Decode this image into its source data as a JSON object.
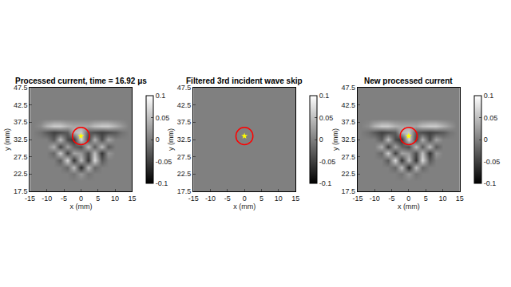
{
  "chart_data": [
    {
      "type": "heatmap",
      "title": "Processed current, time = 16.92 μs",
      "x_label": "x (mm)",
      "y_label": "y (mm)",
      "x": [
        -14,
        -12,
        -10,
        -8,
        -6,
        -4,
        -2,
        0,
        2,
        4,
        6,
        8,
        10,
        12,
        14
      ],
      "y": [
        18.5,
        20.5,
        22.5,
        24.5,
        26.5,
        28.5,
        30.5,
        32.5,
        34.5,
        36.5,
        38.5,
        40.5,
        42.5,
        44.5,
        46.5
      ],
      "z": [
        [
          0,
          0,
          0,
          0,
          0,
          0,
          0,
          0,
          0,
          0,
          0,
          0,
          0,
          0,
          0
        ],
        [
          0,
          0,
          0,
          0,
          0,
          0,
          0,
          0,
          0,
          0,
          0,
          0,
          0,
          0,
          0
        ],
        [
          0,
          0,
          0,
          0,
          0,
          0,
          -0.01,
          0.02,
          -0.01,
          0,
          0,
          0,
          0,
          0,
          0
        ],
        [
          0,
          0,
          0,
          0,
          0,
          -0.02,
          0.05,
          -0.07,
          0.05,
          -0.02,
          0,
          0,
          0,
          0,
          0
        ],
        [
          0,
          0,
          0,
          0,
          -0.03,
          0.07,
          -0.06,
          0.05,
          -0.06,
          0.07,
          -0.03,
          0,
          0,
          0,
          0
        ],
        [
          0,
          0,
          0,
          -0.02,
          0.06,
          -0.05,
          0.03,
          0.02,
          -0.04,
          0.05,
          -0.06,
          0.02,
          0,
          0,
          0
        ],
        [
          0,
          0,
          0,
          0.04,
          -0.05,
          0.03,
          -0.02,
          -0.04,
          0.05,
          -0.03,
          0.05,
          -0.03,
          0,
          0,
          0
        ],
        [
          0,
          0,
          0,
          -0.03,
          0.05,
          -0.04,
          -0.06,
          0.07,
          -0.05,
          0.04,
          -0.04,
          0.03,
          0,
          0,
          0
        ],
        [
          0,
          -0.01,
          -0.03,
          -0.05,
          -0.04,
          -0.03,
          0.04,
          0.06,
          -0.03,
          -0.04,
          -0.05,
          -0.04,
          -0.03,
          -0.01,
          0
        ],
        [
          0,
          0.01,
          0.04,
          0.06,
          0.06,
          0.04,
          0.03,
          0.03,
          0.03,
          0.05,
          0.06,
          0.06,
          0.04,
          0.02,
          0
        ],
        [
          0,
          0,
          0,
          0,
          0,
          0,
          0,
          0,
          0,
          0,
          0,
          0,
          0,
          0,
          0
        ],
        [
          0,
          0,
          0,
          0,
          0,
          0,
          0,
          0,
          0,
          0,
          0,
          0,
          0,
          0,
          0
        ],
        [
          0,
          0,
          0,
          0,
          0,
          0,
          0,
          0,
          0,
          0,
          0,
          0,
          0,
          0,
          0
        ],
        [
          0,
          0,
          0,
          0,
          0,
          0,
          0,
          0,
          0,
          0,
          0,
          0,
          0,
          0,
          0
        ],
        [
          0,
          0,
          0,
          0,
          0,
          0,
          0,
          0,
          0,
          0,
          0,
          0,
          0,
          0,
          0
        ]
      ],
      "xlim": [
        -15,
        15
      ],
      "xticks": [
        -15,
        -10,
        -5,
        0,
        5,
        10,
        15
      ],
      "ylim": [
        17.5,
        47.5
      ],
      "yticks": [
        17.5,
        22.5,
        27.5,
        32.5,
        37.5,
        42.5,
        47.5
      ],
      "zlim": [
        -0.1,
        0.1
      ],
      "zticks": [
        -0.1,
        -0.05,
        0,
        0.05,
        0.1
      ],
      "circle": {
        "x": 0,
        "y": 33.5,
        "r": 2.5,
        "color": "red"
      },
      "point": {
        "x": 0,
        "y": 33.5,
        "color": "yellow",
        "marker": "star"
      }
    },
    {
      "type": "heatmap",
      "title": "Filtered 3rd incident wave skip",
      "x_label": "x (mm)",
      "y_label": "y (mm)",
      "x": [
        -7.5,
        7.5
      ],
      "y": [
        25,
        40
      ],
      "z": [
        [
          0,
          0
        ],
        [
          0,
          0
        ]
      ],
      "xlim": [
        -15,
        15
      ],
      "xticks": [
        -15,
        -10,
        -5,
        0,
        5,
        10,
        15
      ],
      "ylim": [
        17.5,
        47.5
      ],
      "yticks": [
        17.5,
        22.5,
        27.5,
        32.5,
        37.5,
        42.5,
        47.5
      ],
      "zlim": [
        -0.1,
        0.1
      ],
      "zticks": [
        -0.1,
        -0.05,
        0,
        0.05,
        0.1
      ],
      "circle": {
        "x": 0,
        "y": 33.5,
        "r": 2.5,
        "color": "red"
      },
      "point": {
        "x": 0,
        "y": 33.5,
        "color": "yellow",
        "marker": "star"
      }
    },
    {
      "type": "heatmap",
      "title": "New processed current",
      "x_label": "x (mm)",
      "y_label": "y (mm)",
      "x": [
        -14,
        -12,
        -10,
        -8,
        -6,
        -4,
        -2,
        0,
        2,
        4,
        6,
        8,
        10,
        12,
        14
      ],
      "y": [
        18.5,
        20.5,
        22.5,
        24.5,
        26.5,
        28.5,
        30.5,
        32.5,
        34.5,
        36.5,
        38.5,
        40.5,
        42.5,
        44.5,
        46.5
      ],
      "z": [
        [
          0,
          0,
          0,
          0,
          0,
          0,
          0,
          0,
          0,
          0,
          0,
          0,
          0,
          0,
          0
        ],
        [
          0,
          0,
          0,
          0,
          0,
          0,
          0,
          0,
          0,
          0,
          0,
          0,
          0,
          0,
          0
        ],
        [
          0,
          0,
          0,
          0,
          0,
          0,
          -0.01,
          0.02,
          -0.01,
          0,
          0,
          0,
          0,
          0,
          0
        ],
        [
          0,
          0,
          0,
          0,
          0,
          -0.02,
          0.05,
          -0.07,
          0.05,
          -0.02,
          0,
          0,
          0,
          0,
          0
        ],
        [
          0,
          0,
          0,
          0,
          -0.03,
          0.07,
          -0.06,
          0.05,
          -0.06,
          0.07,
          -0.03,
          0,
          0,
          0,
          0
        ],
        [
          0,
          0,
          0,
          -0.02,
          0.06,
          -0.05,
          0.03,
          0.02,
          -0.04,
          0.05,
          -0.06,
          0.02,
          0,
          0,
          0
        ],
        [
          0,
          0,
          0,
          0.04,
          -0.05,
          0.03,
          -0.02,
          -0.04,
          0.05,
          -0.03,
          0.05,
          -0.03,
          0,
          0,
          0
        ],
        [
          0,
          0,
          0,
          -0.03,
          0.05,
          -0.04,
          -0.06,
          0.07,
          -0.05,
          0.04,
          -0.04,
          0.03,
          0,
          0,
          0
        ],
        [
          0,
          -0.01,
          -0.03,
          -0.05,
          -0.04,
          -0.03,
          0.04,
          0.06,
          -0.03,
          -0.04,
          -0.05,
          -0.04,
          -0.03,
          -0.01,
          0
        ],
        [
          0,
          0.01,
          0.04,
          0.06,
          0.06,
          0.04,
          0.03,
          0.03,
          0.03,
          0.05,
          0.06,
          0.06,
          0.04,
          0.02,
          0
        ],
        [
          0,
          0,
          0,
          0,
          0,
          0,
          0,
          0,
          0,
          0,
          0,
          0,
          0,
          0,
          0
        ],
        [
          0,
          0,
          0,
          0,
          0,
          0,
          0,
          0,
          0,
          0,
          0,
          0,
          0,
          0,
          0
        ],
        [
          0,
          0,
          0,
          0,
          0,
          0,
          0,
          0,
          0,
          0,
          0,
          0,
          0,
          0,
          0
        ],
        [
          0,
          0,
          0,
          0,
          0,
          0,
          0,
          0,
          0,
          0,
          0,
          0,
          0,
          0,
          0
        ],
        [
          0,
          0,
          0,
          0,
          0,
          0,
          0,
          0,
          0,
          0,
          0,
          0,
          0,
          0,
          0
        ]
      ],
      "xlim": [
        -15,
        15
      ],
      "xticks": [
        -15,
        -10,
        -5,
        0,
        5,
        10,
        15
      ],
      "ylim": [
        17.5,
        47.5
      ],
      "yticks": [
        17.5,
        22.5,
        27.5,
        32.5,
        37.5,
        42.5,
        47.5
      ],
      "zlim": [
        -0.1,
        0.1
      ],
      "zticks": [
        -0.1,
        -0.05,
        0,
        0.05,
        0.1
      ],
      "circle": {
        "x": 0,
        "y": 33.5,
        "r": 2.5,
        "color": "red"
      },
      "point": {
        "x": 0,
        "y": 33.5,
        "color": "yellow",
        "marker": "star"
      }
    }
  ]
}
